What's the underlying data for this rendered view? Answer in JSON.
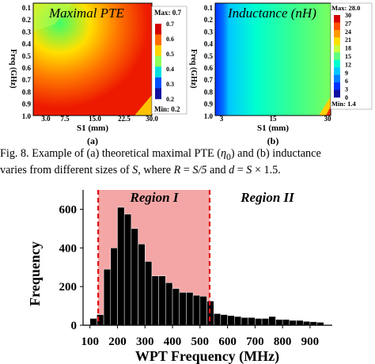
{
  "figure": {
    "panel_a": {
      "title": "Maximal PTE",
      "ylabel": "Freq (GHz)",
      "xlabel": "S1 (mm)",
      "sublabel": "(a)",
      "y_ticks": [
        "0.1",
        "0.2",
        "0.3",
        "0.4",
        "0.5",
        "0.6",
        "0.7",
        "0.8",
        "0.9",
        "1.0"
      ],
      "x_ticks": [
        "3.0",
        "7.5",
        "15.0",
        "22.5",
        "30.0"
      ],
      "colorbar": {
        "max_label": "Max: 0.7",
        "min_label": "Min: 0.2",
        "ticks": [
          "0.7",
          "0.6",
          "0.5",
          "0.4",
          "0.3",
          "0.2"
        ],
        "colors": [
          "#d40000",
          "#ff6a00",
          "#ffd400",
          "#8cff5a",
          "#00e0e0",
          "#0050ff",
          "#1010a0"
        ]
      }
    },
    "panel_b": {
      "title": "Inductance (nH)",
      "ylabel": "Freq (GHz)",
      "xlabel": "S1 (mm)",
      "sublabel": "(b)",
      "y_ticks": [
        "0.1",
        "0.2",
        "0.3",
        "0.4",
        "0.5",
        "0.6",
        "0.7",
        "0.8",
        "0.9",
        "1.0"
      ],
      "x_ticks": [
        "3",
        "15",
        "30"
      ],
      "colorbar": {
        "max_label": "Max: 28.0",
        "min_label": "Min: 1.4",
        "ticks": [
          "30",
          "27",
          "24",
          "21",
          "18",
          "15",
          "12",
          "9",
          "6",
          "3",
          "0"
        ],
        "colors": [
          "#d40000",
          "#ff5000",
          "#ff9a00",
          "#ffe000",
          "#c8ff40",
          "#60ff80",
          "#00ffd0",
          "#00c8ff",
          "#0080ff",
          "#0030ff",
          "#1010a0"
        ]
      }
    },
    "caption": {
      "line1_prefix": "Fig. 8.    Example of (a) theoretical maximal PTE (",
      "line1_symbol": "η",
      "line1_sub": "0",
      "line1_suffix": ") and (b) inductance",
      "line2_a": "varies from different sizes of ",
      "line2_S1": "S",
      "line2_b": ", where ",
      "line2_R": "R",
      "line2_c": " = ",
      "line2_S2": "S/5",
      "line2_d": " and ",
      "line2_dvar": "d",
      "line2_e": " = ",
      "line2_S3": "S",
      "line2_f": " × 1.5."
    }
  },
  "chart_data": {
    "type": "bar",
    "xlabel": "WPT Frequency (MHz)",
    "ylabel": "Frequency",
    "xlim": [
      75,
      975
    ],
    "ylim": [
      0,
      700
    ],
    "x_ticks": [
      100,
      200,
      300,
      400,
      500,
      600,
      700,
      800,
      900
    ],
    "y_ticks": [
      0,
      200,
      400,
      600
    ],
    "bin_width": 25,
    "x": [
      100,
      125,
      150,
      175,
      200,
      225,
      250,
      275,
      300,
      325,
      350,
      375,
      400,
      425,
      450,
      475,
      500,
      525,
      550,
      575,
      600,
      625,
      650,
      675,
      700,
      725,
      750,
      775,
      800,
      825,
      850,
      875,
      900,
      925
    ],
    "values": [
      35,
      55,
      290,
      400,
      610,
      575,
      500,
      420,
      330,
      255,
      255,
      220,
      190,
      170,
      170,
      155,
      150,
      125,
      60,
      55,
      50,
      45,
      40,
      40,
      35,
      35,
      45,
      30,
      30,
      25,
      25,
      20,
      18,
      15
    ],
    "bar_color": "#000000",
    "regions": [
      {
        "label": "Region I",
        "x_start": 130,
        "x_end": 535,
        "color": "#f4a6a6"
      },
      {
        "label": "Region II"
      }
    ],
    "boundary_color": "#e01010"
  }
}
